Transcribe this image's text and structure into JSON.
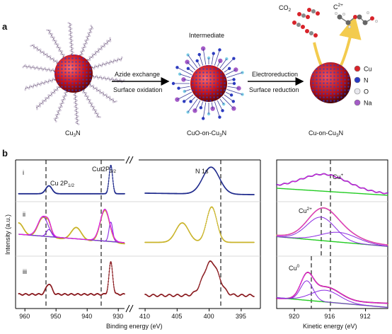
{
  "panel_a": {
    "label": "a",
    "stage1": {
      "name": "Cu",
      "sub": "3",
      "suffix": "N"
    },
    "arrow1": {
      "top": "Azide exchange",
      "bottom": "Surface oxidation"
    },
    "stage2": {
      "intermediate": "Intermediate",
      "name": "CuO-on-Cu",
      "sub": "3",
      "suffix": "N"
    },
    "arrow2": {
      "top": "Electroreduction",
      "bottom": "Surface reduction"
    },
    "stage3": {
      "name": "Cu-on-Cu",
      "sub": "3",
      "suffix": "N"
    },
    "co2": {
      "base": "CO",
      "sub": "2"
    },
    "c2": {
      "base": "C",
      "sub": "2+"
    },
    "legend": [
      {
        "label": "Cu",
        "color": "#d8232a"
      },
      {
        "label": "N",
        "color": "#2a3bc4"
      },
      {
        "label": "O",
        "color": "#e8e8ee"
      },
      {
        "label": "Na",
        "color": "#a45bc7"
      }
    ]
  },
  "panel_b": {
    "label": "b",
    "ylabel": "Intensity (a.u.)",
    "row_labels": [
      "i",
      "ii",
      "iii"
    ],
    "xps": {
      "xlabel": "Binding energy (eV)",
      "cu_ticks": [
        "960",
        "950",
        "940",
        "930"
      ],
      "n_ticks": [
        "410",
        "405",
        "400",
        "395"
      ],
      "cu2p32": {
        "base": "Cu 2P",
        "sub": "3/2"
      },
      "cu2p12": {
        "base": "Cu 2P",
        "sub": "1/2"
      },
      "n1s": "N 1s"
    },
    "auger": {
      "xlabel": "Kinetic energy (eV)",
      "ticks": [
        "920",
        "916",
        "912"
      ],
      "cu_plus": {
        "base": "Cu",
        "sup": "+"
      },
      "cu2_plus": {
        "base": "Cu",
        "sup": "2+"
      },
      "cu0": {
        "base": "Cu",
        "sup": "0"
      }
    },
    "colors": {
      "i": "#1f2a8c",
      "ii": "#c9b328",
      "iii": "#8a1a1f",
      "fit_sum": "#e020e0",
      "fit_comp": "#8a2be2",
      "background": "#22cc22"
    }
  }
}
